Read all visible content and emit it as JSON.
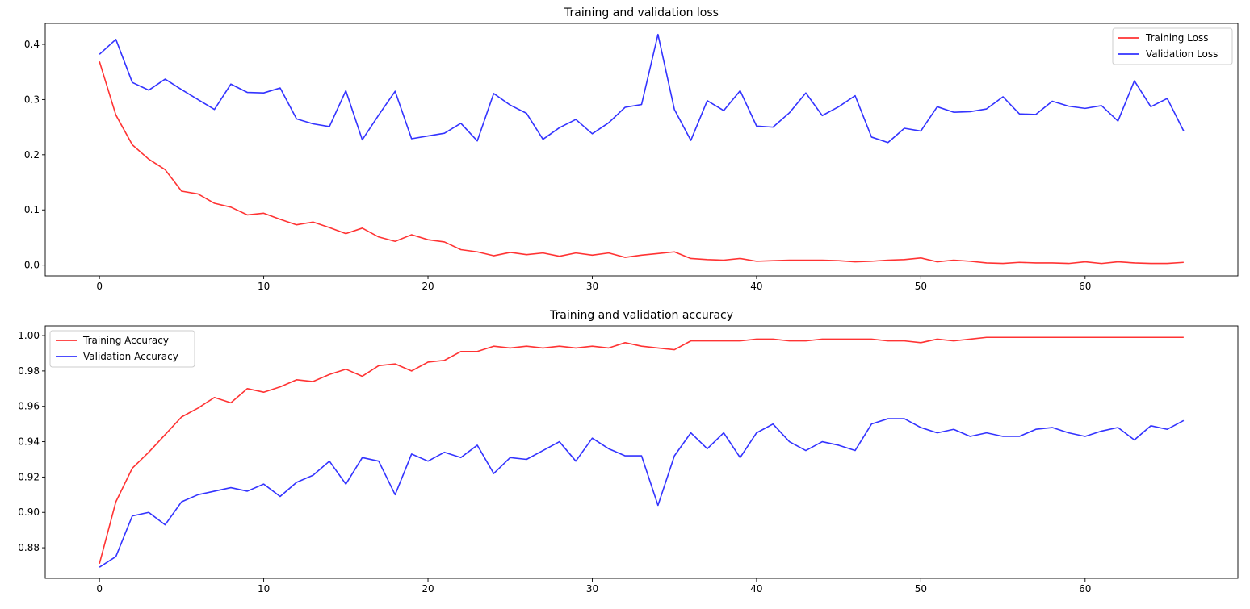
{
  "colors": {
    "training": "#ff3333",
    "validation": "#3333ff"
  },
  "chart_data": [
    {
      "type": "line",
      "title": "Training and validation loss",
      "xlabel": "",
      "ylabel": "",
      "xlim": [
        -3.3,
        69.3
      ],
      "ylim": [
        -0.0195,
        0.438
      ],
      "xticks": [
        0,
        10,
        20,
        30,
        40,
        50,
        60
      ],
      "yticks": [
        0.0,
        0.1,
        0.2,
        0.3,
        0.4
      ],
      "ytick_labels": [
        "0.0",
        "0.1",
        "0.2",
        "0.3",
        "0.4"
      ],
      "grid": false,
      "legend": "upper right",
      "series": [
        {
          "name": "Training Loss",
          "color": "#ff3333",
          "values": [
            0.369,
            0.272,
            0.218,
            0.192,
            0.173,
            0.134,
            0.129,
            0.112,
            0.105,
            0.091,
            0.094,
            0.083,
            0.073,
            0.078,
            0.068,
            0.057,
            0.067,
            0.051,
            0.043,
            0.055,
            0.046,
            0.042,
            0.028,
            0.024,
            0.017,
            0.023,
            0.019,
            0.022,
            0.016,
            0.022,
            0.018,
            0.022,
            0.014,
            0.018,
            0.021,
            0.024,
            0.012,
            0.01,
            0.009,
            0.012,
            0.007,
            0.008,
            0.009,
            0.009,
            0.009,
            0.008,
            0.006,
            0.007,
            0.009,
            0.01,
            0.013,
            0.006,
            0.009,
            0.007,
            0.004,
            0.003,
            0.005,
            0.004,
            0.004,
            0.003,
            0.006,
            0.003,
            0.006,
            0.004,
            0.003,
            0.003,
            0.005
          ]
        },
        {
          "name": "Validation Loss",
          "color": "#3333ff",
          "values": [
            0.382,
            0.409,
            0.331,
            0.317,
            0.337,
            0.318,
            0.3,
            0.282,
            0.328,
            0.313,
            0.312,
            0.321,
            0.265,
            0.256,
            0.251,
            0.316,
            0.227,
            0.272,
            0.315,
            0.229,
            0.234,
            0.239,
            0.257,
            0.225,
            0.311,
            0.29,
            0.275,
            0.228,
            0.249,
            0.264,
            0.238,
            0.258,
            0.286,
            0.291,
            0.418,
            0.282,
            0.226,
            0.298,
            0.28,
            0.316,
            0.252,
            0.25,
            0.276,
            0.312,
            0.271,
            0.287,
            0.307,
            0.232,
            0.222,
            0.248,
            0.243,
            0.287,
            0.277,
            0.278,
            0.283,
            0.305,
            0.274,
            0.273,
            0.297,
            0.288,
            0.284,
            0.289,
            0.261,
            0.334,
            0.287,
            0.302,
            0.243
          ]
        }
      ]
    },
    {
      "type": "line",
      "title": "Training and validation accuracy",
      "xlabel": "",
      "ylabel": "",
      "xlim": [
        -3.3,
        69.3
      ],
      "ylim": [
        0.8627,
        1.0055
      ],
      "xticks": [
        0,
        10,
        20,
        30,
        40,
        50,
        60
      ],
      "yticks": [
        0.88,
        0.9,
        0.92,
        0.94,
        0.96,
        0.98,
        1.0
      ],
      "ytick_labels": [
        "0.88",
        "0.90",
        "0.92",
        "0.94",
        "0.96",
        "0.98",
        "1.00"
      ],
      "grid": false,
      "legend": "upper left",
      "series": [
        {
          "name": "Training Accuracy",
          "color": "#ff3333",
          "values": [
            0.871,
            0.906,
            0.925,
            0.934,
            0.944,
            0.954,
            0.959,
            0.965,
            0.962,
            0.97,
            0.968,
            0.971,
            0.975,
            0.974,
            0.978,
            0.981,
            0.977,
            0.983,
            0.984,
            0.98,
            0.985,
            0.986,
            0.991,
            0.991,
            0.994,
            0.993,
            0.994,
            0.993,
            0.994,
            0.993,
            0.994,
            0.993,
            0.996,
            0.994,
            0.993,
            0.992,
            0.997,
            0.997,
            0.997,
            0.997,
            0.998,
            0.998,
            0.997,
            0.997,
            0.998,
            0.998,
            0.998,
            0.998,
            0.997,
            0.997,
            0.996,
            0.998,
            0.997,
            0.998,
            0.999,
            0.999,
            0.999,
            0.999,
            0.999,
            0.999,
            0.999,
            0.999,
            0.999,
            0.999,
            0.999,
            0.999,
            0.999
          ]
        },
        {
          "name": "Validation Accuracy",
          "color": "#3333ff",
          "values": [
            0.869,
            0.875,
            0.898,
            0.9,
            0.893,
            0.906,
            0.91,
            0.912,
            0.914,
            0.912,
            0.916,
            0.909,
            0.917,
            0.921,
            0.929,
            0.916,
            0.931,
            0.929,
            0.91,
            0.933,
            0.929,
            0.934,
            0.931,
            0.938,
            0.922,
            0.931,
            0.93,
            0.935,
            0.94,
            0.929,
            0.942,
            0.936,
            0.932,
            0.932,
            0.904,
            0.932,
            0.945,
            0.936,
            0.945,
            0.931,
            0.945,
            0.95,
            0.94,
            0.935,
            0.94,
            0.938,
            0.935,
            0.95,
            0.953,
            0.953,
            0.948,
            0.945,
            0.947,
            0.943,
            0.945,
            0.943,
            0.943,
            0.947,
            0.948,
            0.945,
            0.943,
            0.946,
            0.948,
            0.941,
            0.949,
            0.947,
            0.952
          ]
        }
      ]
    }
  ]
}
